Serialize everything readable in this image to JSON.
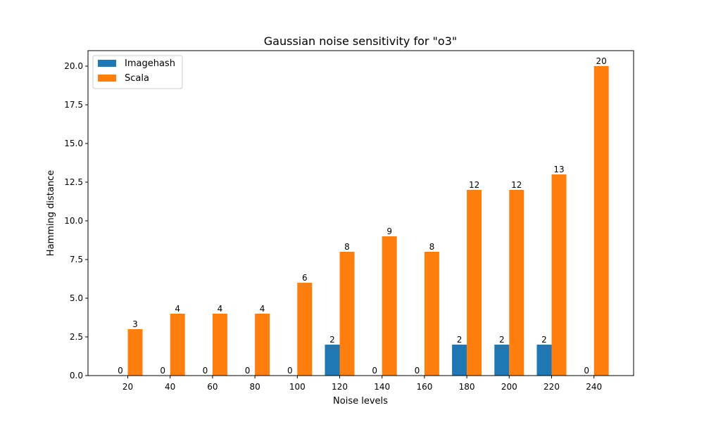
{
  "chart_data": {
    "type": "bar",
    "title": "Gaussian noise sensitivity for \"o3\"",
    "xlabel": "Noise levels",
    "ylabel": "Hamming distance",
    "categories": [
      "20",
      "40",
      "60",
      "80",
      "100",
      "120",
      "140",
      "160",
      "180",
      "200",
      "220",
      "240"
    ],
    "series": [
      {
        "name": "Imagehash",
        "color": "#1f77b4",
        "values": [
          0,
          0,
          0,
          0,
          0,
          2,
          0,
          0,
          2,
          2,
          2,
          0
        ]
      },
      {
        "name": "Scala",
        "color": "#ff7f0e",
        "values": [
          3,
          4,
          4,
          4,
          6,
          8,
          9,
          8,
          12,
          12,
          13,
          20
        ]
      }
    ],
    "ylim": [
      0,
      21
    ],
    "yticks": [
      "0.0",
      "2.5",
      "5.0",
      "7.5",
      "10.0",
      "12.5",
      "15.0",
      "17.5",
      "20.0"
    ],
    "grid": false,
    "legend_position": "top-left",
    "data_labels": true
  }
}
